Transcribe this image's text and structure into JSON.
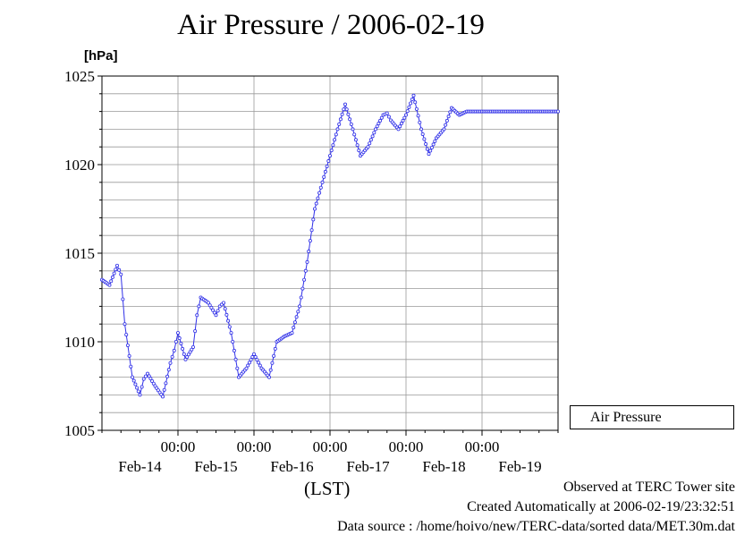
{
  "header": {
    "title": "Air Pressure / 2006-02-19",
    "unit_label": "[hPa]",
    "x_unit_label": "(LST)"
  },
  "footer": {
    "line1": "Observed at TERC Tower site",
    "line2": "Created Automatically at 2006-02-19/23:32:51",
    "line3": "Data source : /home/hoivo/new/TERC-data/sorted  data/MET.30m.dat"
  },
  "legend": {
    "label": "Air Pressure",
    "placement": "right"
  },
  "colors": {
    "series": "#3030e8",
    "grid": "#999999",
    "axis": "#000000"
  },
  "chart_data": {
    "type": "line",
    "title": "Air Pressure / 2006-02-19",
    "ylabel": "[hPa]",
    "xlabel": "(LST)",
    "ylim": [
      1005,
      1025
    ],
    "yticks": [
      1005,
      1010,
      1015,
      1020,
      1025
    ],
    "ytick_labels": [
      "1005",
      "1010",
      "1015",
      "1020",
      "1025"
    ],
    "x_domain_days": [
      0,
      6
    ],
    "xticks_days": [
      1,
      2,
      3,
      4,
      5
    ],
    "xtick_time_labels": [
      "00:00",
      "00:00",
      "00:00",
      "00:00",
      "00:00"
    ],
    "date_labels": [
      "Feb-14",
      "Feb-15",
      "Feb-16",
      "Feb-17",
      "Feb-18",
      "Feb-19"
    ],
    "date_label_positions_days": [
      0.5,
      1.5,
      2.5,
      3.5,
      4.5,
      5.5
    ],
    "grid": true,
    "series": [
      {
        "name": "Air Pressure",
        "marker": "circle-open",
        "x_days": [
          0.0,
          0.1,
          0.2,
          0.25,
          0.3,
          0.4,
          0.5,
          0.55,
          0.6,
          0.7,
          0.8,
          0.9,
          0.95,
          1.0,
          1.1,
          1.2,
          1.25,
          1.3,
          1.4,
          1.5,
          1.55,
          1.6,
          1.7,
          1.8,
          1.9,
          2.0,
          2.1,
          2.2,
          2.3,
          2.4,
          2.5,
          2.6,
          2.7,
          2.8,
          2.9,
          3.0,
          3.1,
          3.2,
          3.3,
          3.4,
          3.5,
          3.6,
          3.7,
          3.75,
          3.8,
          3.9,
          4.0,
          4.1,
          4.2,
          4.3,
          4.4,
          4.5,
          4.6,
          4.7,
          4.8,
          4.9,
          5.0,
          5.1,
          5.2,
          5.3,
          5.4,
          5.5,
          5.6,
          5.7,
          5.8,
          5.9,
          6.0
        ],
        "values": [
          1013.5,
          1013.2,
          1014.3,
          1013.8,
          1011.0,
          1008.0,
          1007.0,
          1007.9,
          1008.2,
          1007.5,
          1006.9,
          1008.8,
          1009.5,
          1010.5,
          1009.0,
          1009.7,
          1011.5,
          1012.5,
          1012.2,
          1011.5,
          1012.0,
          1012.2,
          1010.5,
          1008.0,
          1008.5,
          1009.3,
          1008.5,
          1008.0,
          1010.0,
          1010.3,
          1010.5,
          1012.0,
          1014.5,
          1017.5,
          1019.0,
          1020.5,
          1022.0,
          1023.4,
          1022.0,
          1020.5,
          1021.0,
          1022.0,
          1022.8,
          1022.9,
          1022.5,
          1022.0,
          1022.8,
          1023.9,
          1022.0,
          1020.6,
          1021.5,
          1022.0,
          1023.2,
          1022.8,
          1023.0,
          1023.0,
          1023.0,
          1023.0,
          1023.0,
          1023.0,
          1023.0,
          1023.0,
          1023.0,
          1023.0,
          1023.0,
          1023.0,
          1023.0
        ]
      }
    ]
  }
}
